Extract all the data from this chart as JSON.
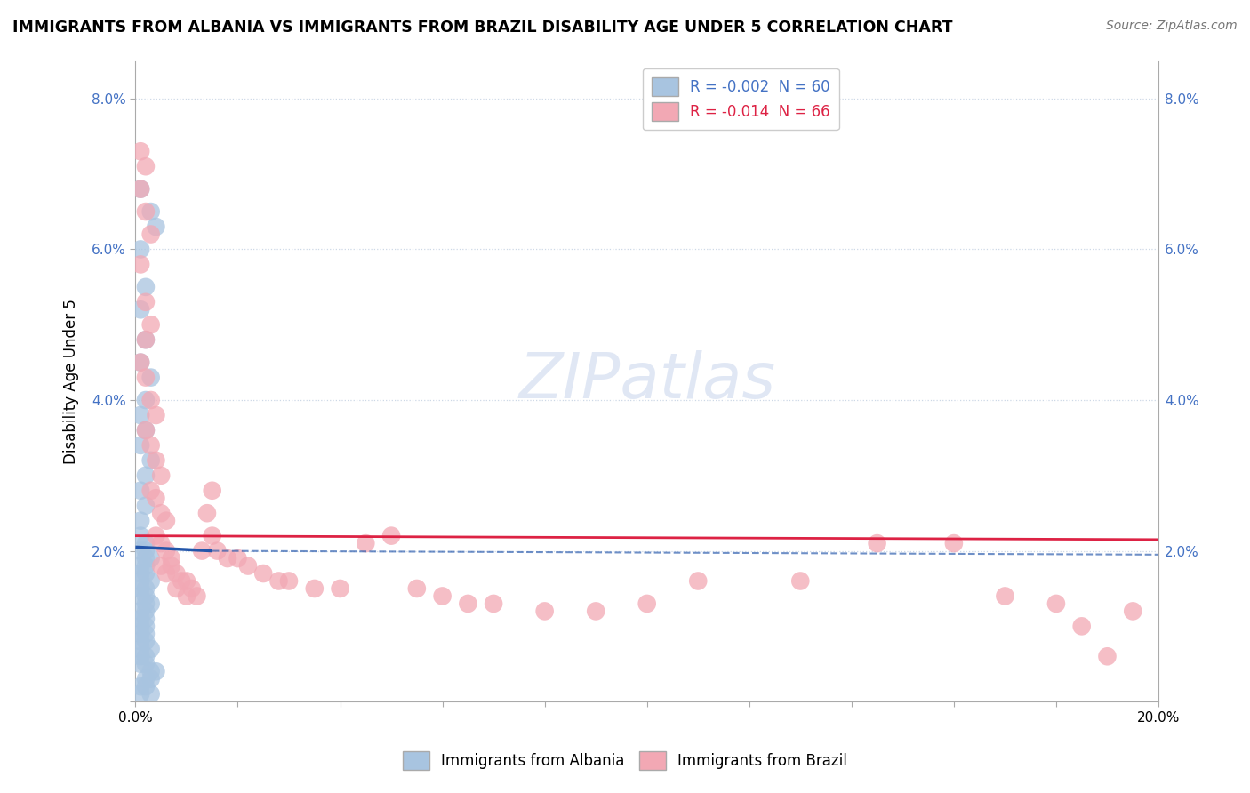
{
  "title": "IMMIGRANTS FROM ALBANIA VS IMMIGRANTS FROM BRAZIL DISABILITY AGE UNDER 5 CORRELATION CHART",
  "source": "Source: ZipAtlas.com",
  "ylabel": "Disability Age Under 5",
  "legend_entry1": "R = -0.002  N = 60",
  "legend_entry2": "R = -0.014  N = 66",
  "legend_label1": "Immigrants from Albania",
  "legend_label2": "Immigrants from Brazil",
  "xlim": [
    0.0,
    0.2
  ],
  "ylim": [
    0.0,
    0.085
  ],
  "yticks": [
    0.0,
    0.02,
    0.04,
    0.06,
    0.08
  ],
  "albania_color": "#a8c4e0",
  "brazil_color": "#f2a8b4",
  "albania_line_color": "#2255aa",
  "brazil_line_color": "#dd2244",
  "watermark_color": "#ccd8ee",
  "background_color": "#ffffff",
  "grid_color": "#c8d4e4",
  "albania_x": [
    0.001,
    0.003,
    0.004,
    0.001,
    0.002,
    0.001,
    0.002,
    0.001,
    0.003,
    0.002,
    0.001,
    0.002,
    0.001,
    0.003,
    0.002,
    0.001,
    0.002,
    0.001,
    0.001,
    0.002,
    0.001,
    0.002,
    0.003,
    0.002,
    0.001,
    0.002,
    0.001,
    0.002,
    0.003,
    0.001,
    0.002,
    0.001,
    0.002,
    0.001,
    0.002,
    0.003,
    0.002,
    0.001,
    0.002,
    0.001,
    0.001,
    0.002,
    0.001,
    0.002,
    0.001,
    0.002,
    0.003,
    0.001,
    0.002,
    0.001,
    0.001,
    0.002,
    0.003,
    0.004,
    0.003,
    0.002,
    0.001,
    0.002,
    0.001,
    0.003
  ],
  "albania_y": [
    0.068,
    0.065,
    0.063,
    0.06,
    0.055,
    0.052,
    0.048,
    0.045,
    0.043,
    0.04,
    0.038,
    0.036,
    0.034,
    0.032,
    0.03,
    0.028,
    0.026,
    0.024,
    0.022,
    0.021,
    0.02,
    0.02,
    0.019,
    0.019,
    0.018,
    0.018,
    0.017,
    0.017,
    0.016,
    0.016,
    0.015,
    0.015,
    0.014,
    0.014,
    0.013,
    0.013,
    0.012,
    0.012,
    0.011,
    0.011,
    0.01,
    0.01,
    0.009,
    0.009,
    0.008,
    0.008,
    0.007,
    0.007,
    0.006,
    0.006,
    0.005,
    0.005,
    0.004,
    0.004,
    0.003,
    0.003,
    0.002,
    0.002,
    0.001,
    0.001
  ],
  "brazil_x": [
    0.001,
    0.002,
    0.001,
    0.002,
    0.003,
    0.001,
    0.002,
    0.003,
    0.002,
    0.001,
    0.002,
    0.003,
    0.004,
    0.002,
    0.003,
    0.004,
    0.005,
    0.003,
    0.004,
    0.005,
    0.006,
    0.004,
    0.005,
    0.006,
    0.007,
    0.005,
    0.007,
    0.008,
    0.006,
    0.009,
    0.01,
    0.008,
    0.011,
    0.012,
    0.01,
    0.014,
    0.015,
    0.013,
    0.016,
    0.018,
    0.02,
    0.015,
    0.022,
    0.025,
    0.028,
    0.03,
    0.035,
    0.04,
    0.045,
    0.05,
    0.055,
    0.06,
    0.065,
    0.07,
    0.08,
    0.09,
    0.1,
    0.11,
    0.13,
    0.145,
    0.16,
    0.17,
    0.18,
    0.185,
    0.19,
    0.195
  ],
  "brazil_y": [
    0.073,
    0.071,
    0.068,
    0.065,
    0.062,
    0.058,
    0.053,
    0.05,
    0.048,
    0.045,
    0.043,
    0.04,
    0.038,
    0.036,
    0.034,
    0.032,
    0.03,
    0.028,
    0.027,
    0.025,
    0.024,
    0.022,
    0.021,
    0.02,
    0.019,
    0.018,
    0.018,
    0.017,
    0.017,
    0.016,
    0.016,
    0.015,
    0.015,
    0.014,
    0.014,
    0.025,
    0.022,
    0.02,
    0.02,
    0.019,
    0.019,
    0.028,
    0.018,
    0.017,
    0.016,
    0.016,
    0.015,
    0.015,
    0.021,
    0.022,
    0.015,
    0.014,
    0.013,
    0.013,
    0.012,
    0.012,
    0.013,
    0.016,
    0.016,
    0.021,
    0.021,
    0.014,
    0.013,
    0.01,
    0.006,
    0.012
  ],
  "alb_trend_x0": 0.0,
  "alb_trend_y0": 0.0205,
  "alb_trend_x1": 0.015,
  "alb_trend_y1": 0.02,
  "alb_trend_x2": 0.2,
  "alb_trend_y2": 0.0195,
  "bra_trend_x0": 0.0,
  "bra_trend_y0": 0.022,
  "bra_trend_x1": 0.2,
  "bra_trend_y1": 0.0215
}
